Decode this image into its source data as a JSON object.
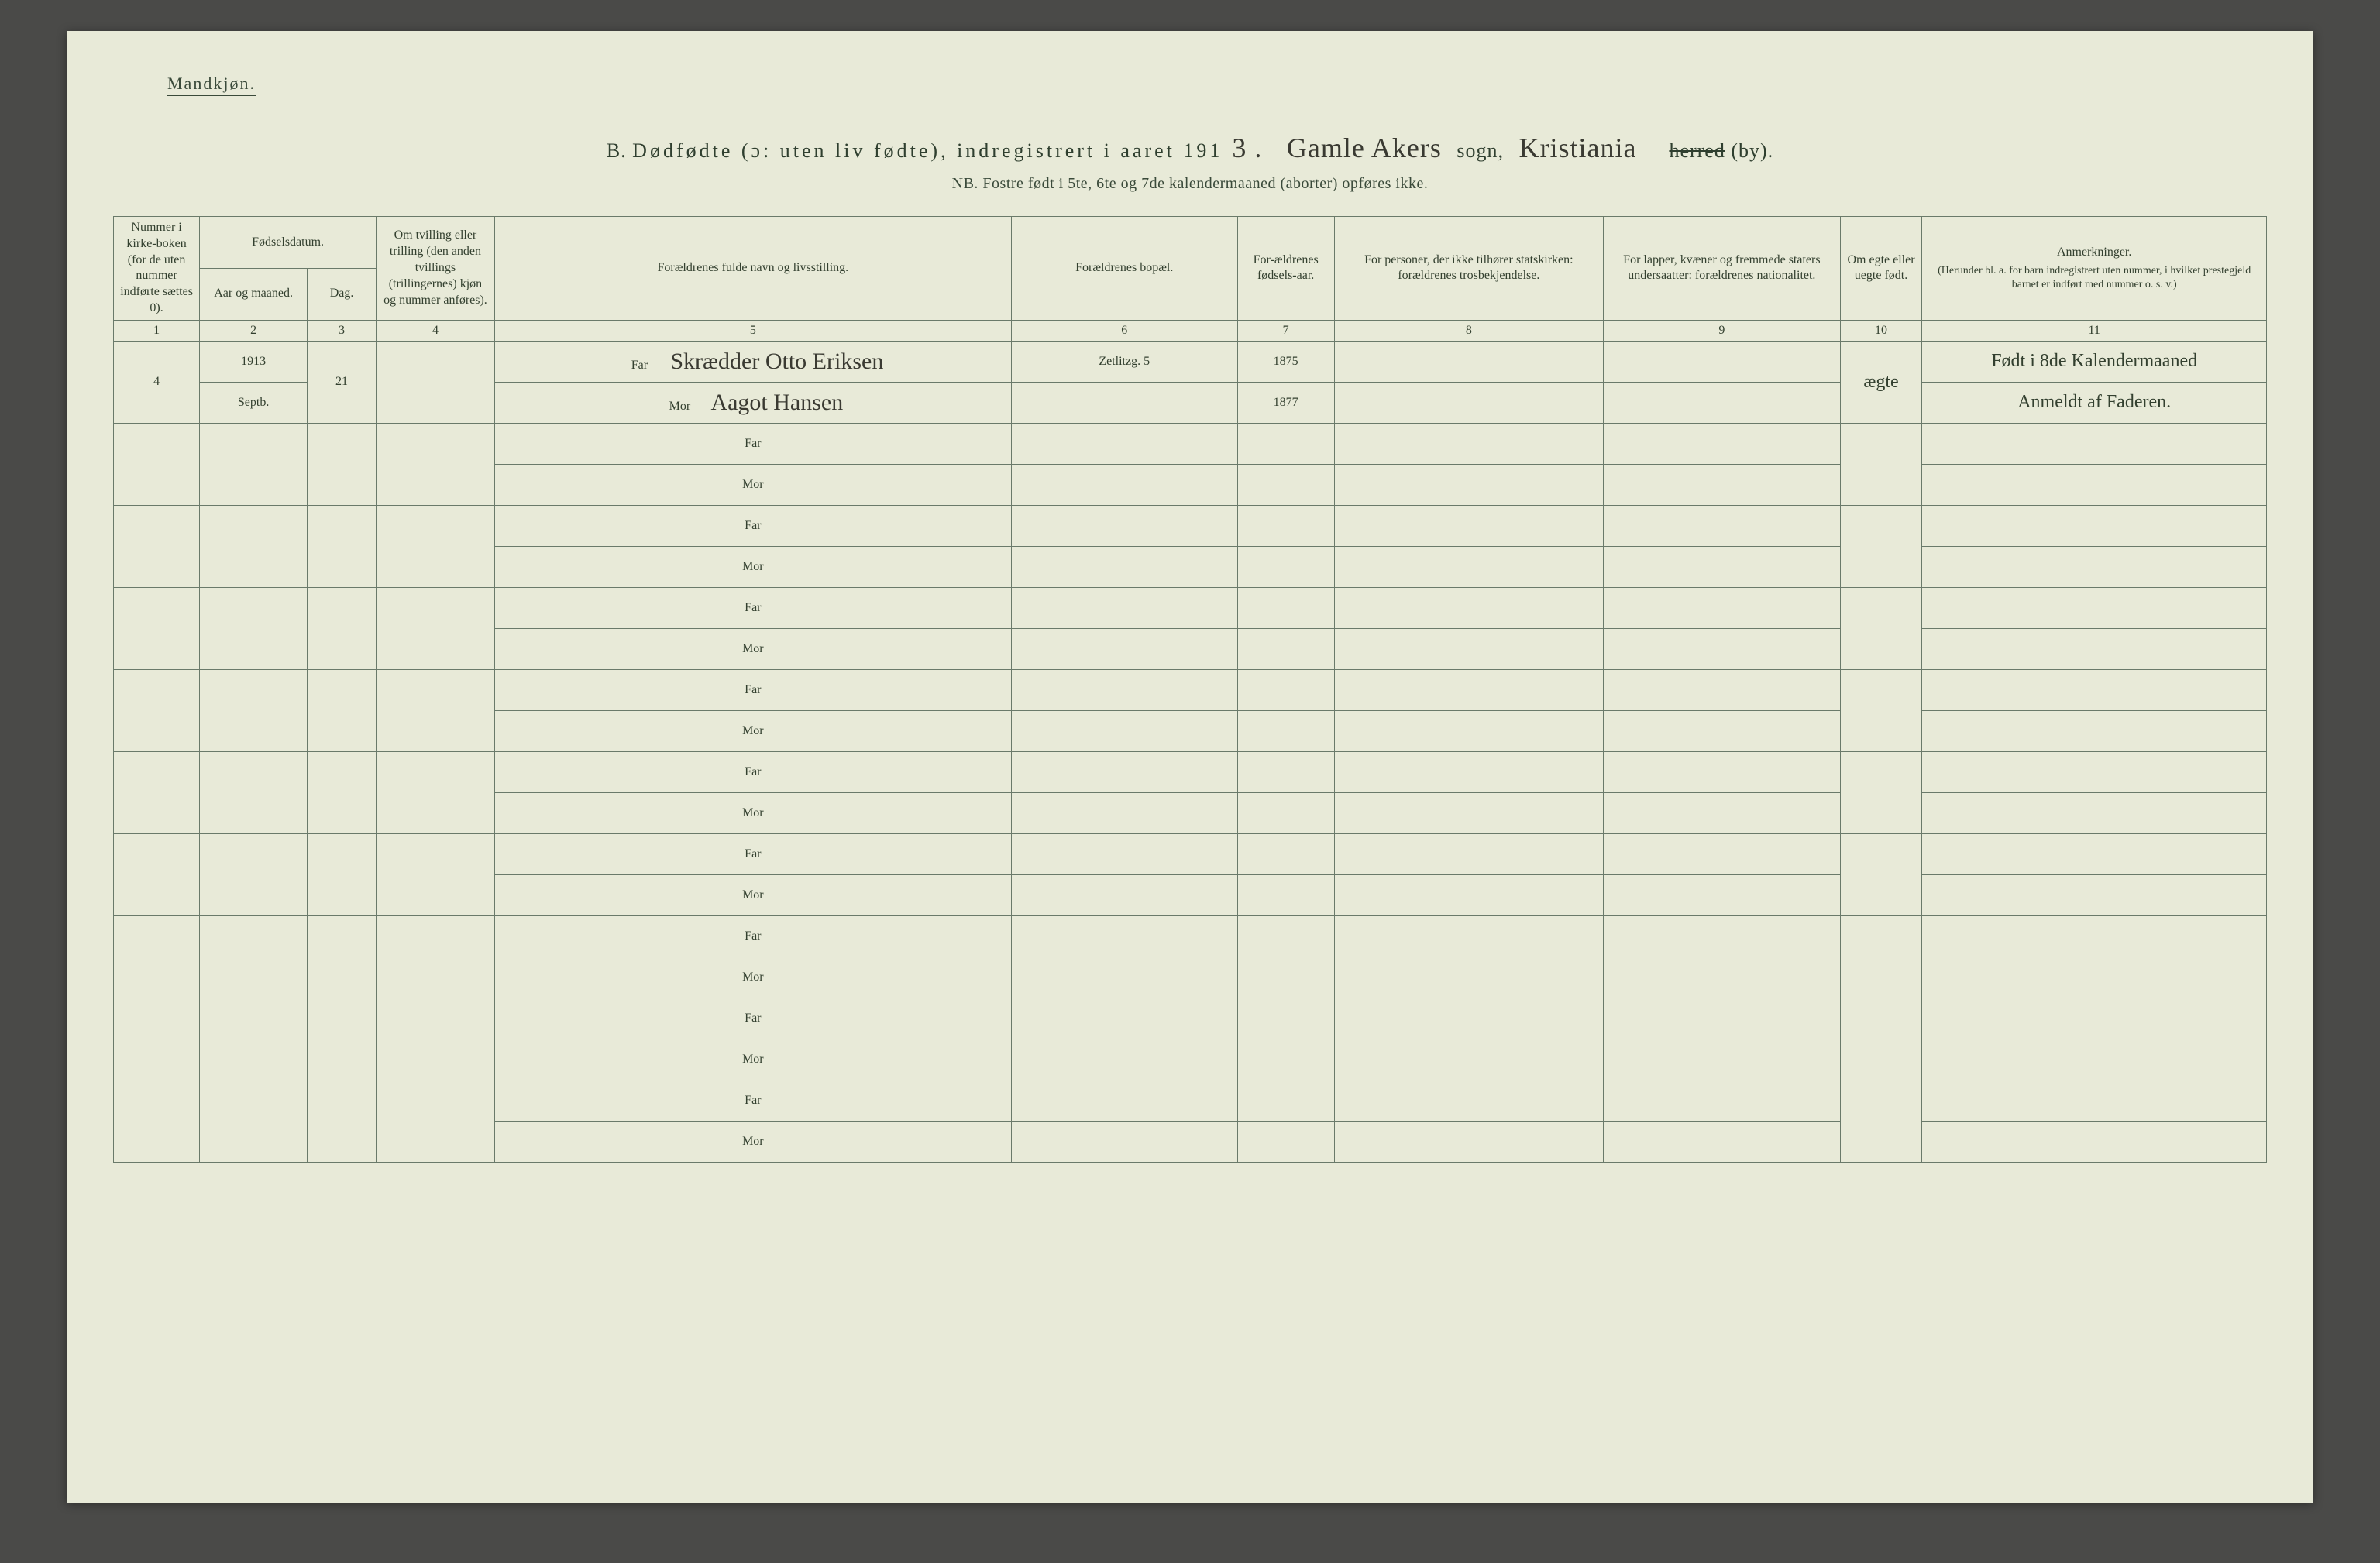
{
  "gender_label": "Mandkjøn.",
  "title": {
    "prefix_letter": "B.",
    "printed_main": "Dødfødte (ɔ: uten liv fødte), indregistrert i aaret 191",
    "year_digit_hand": "3 .",
    "sogn_hand": "Gamle Akers",
    "sogn_label": "sogn,",
    "herred_hand": "Kristiania",
    "herred_printed_strike": "herred",
    "herred_printed_tail": "(by)."
  },
  "subnote": "NB. Fostre født i 5te, 6te og 7de kalendermaaned (aborter) opføres ikke.",
  "columns": {
    "c1": "Nummer i kirke-boken (for de uten nummer indførte sættes 0).",
    "c2_group": "Fødselsdatum.",
    "c2a": "Aar og maaned.",
    "c2b": "Dag.",
    "c4": "Om tvilling eller trilling (den anden tvillings (trillingernes) kjøn og nummer anføres).",
    "c5": "Forældrenes fulde navn og livsstilling.",
    "c6": "Forældrenes bopæl.",
    "c7": "For-ældrenes fødsels-aar.",
    "c8": "For personer, der ikke tilhører statskirken: forældrenes trosbekjendelse.",
    "c9": "For lapper, kvæner og fremmede staters undersaatter: forældrenes nationalitet.",
    "c10": "Om egte eller uegte født.",
    "c11_title": "Anmerkninger.",
    "c11_sub": "(Herunder bl. a. for barn indregistrert uten nummer, i hvilket prestegjeld barnet er indført med nummer o. s. v.)"
  },
  "colnums": [
    "1",
    "2",
    "3",
    "4",
    "5",
    "6",
    "7",
    "8",
    "9",
    "10",
    "11"
  ],
  "far_label": "Far",
  "mor_label": "Mor",
  "entry": {
    "record_no": "4",
    "year": "1913",
    "month": "Septb.",
    "day": "21",
    "father_name": "Skrædder Otto Eriksen",
    "mother_name": "Aagot Hansen",
    "residence": "Zetlitzg. 5",
    "father_birth": "1875",
    "mother_birth": "1877",
    "legitimacy": "ægte",
    "remark_line1": "Født i 8de Kalendermaaned",
    "remark_line2": "Anmeldt af Faderen."
  },
  "empty_row_count": 9,
  "colors": {
    "page_bg": "#e8ead8",
    "outer_bg": "#4a4a48",
    "rule": "#6a7a6a",
    "text": "#33402f",
    "hand": "#3a3a32"
  },
  "col_widths_pct": [
    4.0,
    5.0,
    3.2,
    5.5,
    24.0,
    10.5,
    4.5,
    12.5,
    11.0,
    3.8,
    16.0
  ]
}
